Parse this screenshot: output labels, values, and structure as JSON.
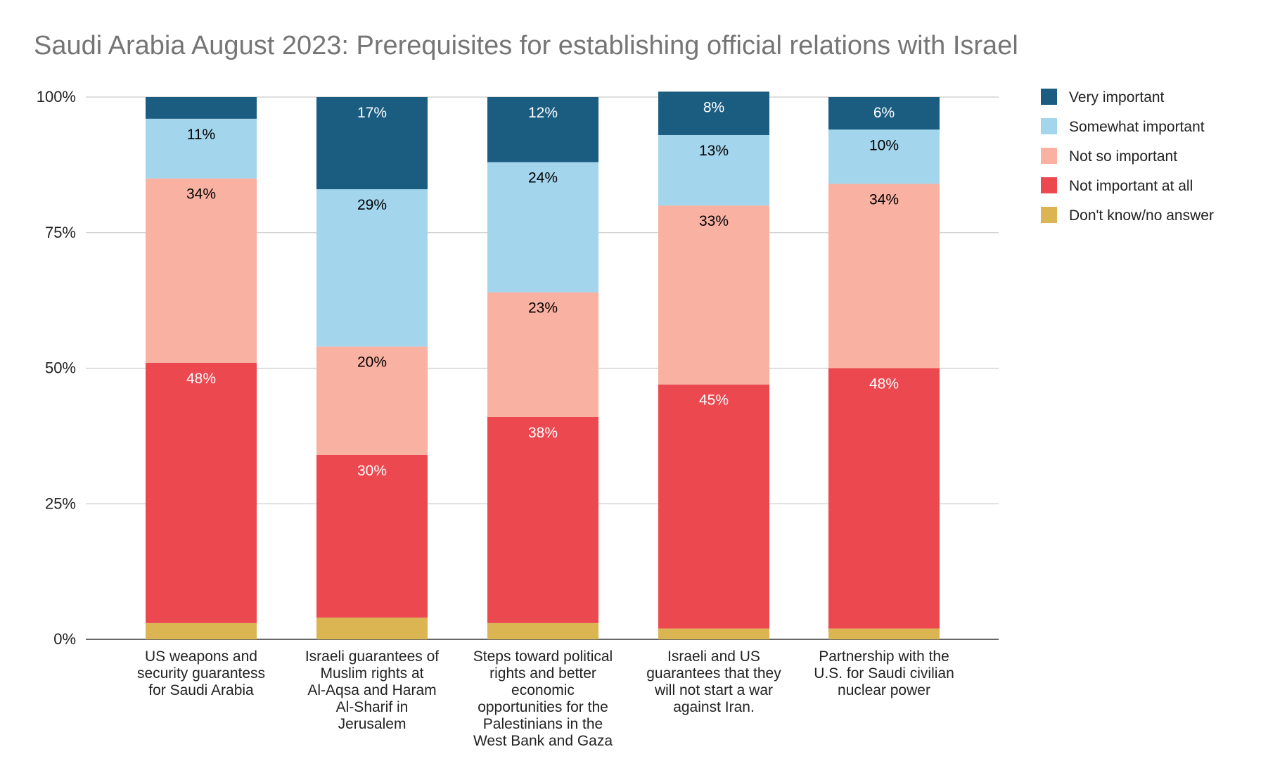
{
  "chart_data": {
    "type": "bar",
    "stacked": true,
    "title": "Saudi Arabia August 2023: Prerequisites for establishing official relations with Israel",
    "xlabel": "",
    "ylabel": "",
    "ylim": [
      0,
      100
    ],
    "y_ticks": [
      "0%",
      "25%",
      "50%",
      "75%",
      "100%"
    ],
    "y_tick_values": [
      0,
      25,
      50,
      75,
      100
    ],
    "grid": true,
    "legend_position": "top-right",
    "categories": [
      [
        "US weapons and",
        "security guarantess",
        "for Saudi Arabia"
      ],
      [
        "Israeli guarantees of",
        "Muslim rights at",
        "Al-Aqsa and Haram",
        "Al-Sharif in",
        "Jerusalem"
      ],
      [
        "Steps toward political",
        "rights and better",
        "economic",
        "opportunities for the",
        "Palestinians in the",
        "West Bank and Gaza"
      ],
      [
        "Israeli and US",
        "guarantees that they",
        "will not start a war",
        "against Iran."
      ],
      [
        "Partnership with the",
        "U.S. for Saudi civilian",
        "nuclear power"
      ]
    ],
    "series": [
      {
        "name": "Don't know/no answer",
        "color": "#dab552",
        "label_color": "#000000",
        "values": [
          3,
          4,
          3,
          2,
          2
        ],
        "labels": [
          "",
          "",
          "",
          "",
          ""
        ]
      },
      {
        "name": "Not important at all",
        "color": "#ec4850",
        "label_color": "#ffffff",
        "values": [
          48,
          30,
          38,
          45,
          48
        ],
        "labels": [
          "48%",
          "30%",
          "38%",
          "45%",
          "48%"
        ]
      },
      {
        "name": "Not so important",
        "color": "#f9b1a2",
        "label_color": "#000000",
        "values": [
          34,
          20,
          23,
          33,
          34
        ],
        "labels": [
          "34%",
          "20%",
          "23%",
          "33%",
          "34%"
        ]
      },
      {
        "name": "Somewhat important",
        "color": "#a3d5ed",
        "label_color": "#000000",
        "values": [
          11,
          29,
          24,
          13,
          10
        ],
        "labels": [
          "11%",
          "29%",
          "24%",
          "13%",
          "10%"
        ]
      },
      {
        "name": "Very important",
        "color": "#1a5d80",
        "label_color": "#ffffff",
        "values": [
          4,
          17,
          12,
          8,
          6
        ],
        "labels": [
          "",
          "17%",
          "12%",
          "8%",
          "6%"
        ]
      }
    ],
    "legend_order": [
      "Very important",
      "Somewhat important",
      "Not so important",
      "Not important at all",
      "Don't know/no answer"
    ]
  }
}
